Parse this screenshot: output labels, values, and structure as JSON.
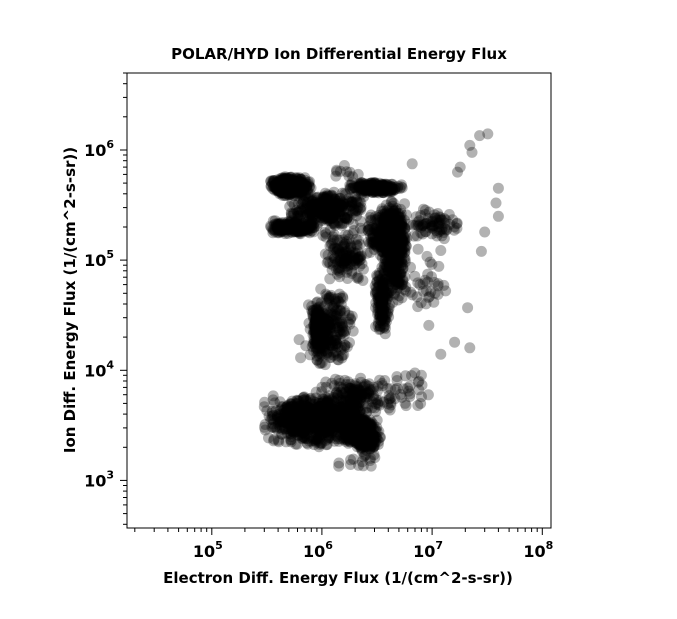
{
  "chart_data": {
    "type": "scatter",
    "title": "POLAR/HYD  Ion Differential Energy Flux",
    "xlabel": "Electron Diff. Energy Flux (1/(cm^2-s-sr))",
    "ylabel": "Ion Diff. Energy Flux (1/(cm^2-s-sr))",
    "xscale": "log",
    "yscale": "log",
    "xlim": [
      17000,
      120000000
    ],
    "ylim": [
      370,
      5000000
    ],
    "xticks": [
      {
        "value": 100000,
        "base": "10",
        "exp": "5"
      },
      {
        "value": 1000000,
        "base": "10",
        "exp": "6"
      },
      {
        "value": 10000000,
        "base": "10",
        "exp": "7"
      },
      {
        "value": 100000000,
        "base": "10",
        "exp": "8"
      }
    ],
    "yticks": [
      {
        "value": 1000,
        "base": "10",
        "exp": "3"
      },
      {
        "value": 10000,
        "base": "10",
        "exp": "4"
      },
      {
        "value": 100000,
        "base": "10",
        "exp": "5"
      },
      {
        "value": 1000000,
        "base": "10",
        "exp": "6"
      }
    ],
    "grid": false,
    "marker": {
      "color": "#000000",
      "opacity": 0.3
    },
    "clusters": [
      {
        "x": [
          280000,
          2800000
        ],
        "y": [
          2000,
          6000
        ],
        "count": 700
      },
      {
        "x": [
          380000,
          2500000
        ],
        "y": [
          2800,
          5000
        ],
        "count": 400
      },
      {
        "x": [
          1500000,
          3600000
        ],
        "y": [
          1800,
          3800
        ],
        "count": 300
      },
      {
        "x": [
          800000,
          5000000
        ],
        "y": [
          4000,
          9000
        ],
        "count": 160
      },
      {
        "x": [
          700000,
          2000000
        ],
        "y": [
          10000,
          60000
        ],
        "count": 250
      },
      {
        "x": [
          800000,
          1000000
        ],
        "y": [
          15000,
          40000
        ],
        "count": 120
      },
      {
        "x": [
          1000000,
          2600000
        ],
        "y": [
          60000,
          200000
        ],
        "count": 140
      },
      {
        "x": [
          3000000,
          4200000
        ],
        "y": [
          20000,
          90000
        ],
        "count": 140
      },
      {
        "x": [
          3500000,
          6000000
        ],
        "y": [
          40000,
          400000
        ],
        "count": 350
      },
      {
        "x": [
          330000,
          800000
        ],
        "y": [
          380000,
          580000
        ],
        "count": 450
      },
      {
        "x": [
          500000,
          2500000
        ],
        "y": [
          200000,
          420000
        ],
        "count": 350
      },
      {
        "x": [
          330000,
          900000
        ],
        "y": [
          170000,
          230000
        ],
        "count": 200
      },
      {
        "x": [
          1700000,
          5500000
        ],
        "y": [
          400000,
          520000
        ],
        "count": 220
      },
      {
        "x": [
          2500000,
          6000000
        ],
        "y": [
          100000,
          300000
        ],
        "count": 250
      },
      {
        "x": [
          5000000,
          20000000
        ],
        "y": [
          150000,
          300000
        ],
        "count": 80
      },
      {
        "x": [
          1200000,
          2400000
        ],
        "y": [
          550000,
          750000
        ],
        "count": 10
      },
      {
        "x": [
          6000000,
          15000000
        ],
        "y": [
          20000,
          150000
        ],
        "count": 35
      },
      {
        "x": [
          3500000,
          10000000
        ],
        "y": [
          3500,
          12000
        ],
        "count": 25
      },
      {
        "x": [
          1200000,
          5000000
        ],
        "y": [
          1200,
          2000
        ],
        "count": 15
      }
    ],
    "outliers": [
      [
        32000000,
        1400000
      ],
      [
        27000000,
        1350000
      ],
      [
        22000000,
        1100000
      ],
      [
        23000000,
        950000
      ],
      [
        18000000,
        700000
      ],
      [
        17000000,
        630000
      ],
      [
        40000000,
        450000
      ],
      [
        38000000,
        330000
      ],
      [
        40000000,
        250000
      ],
      [
        30000000,
        180000
      ],
      [
        28000000,
        120000
      ],
      [
        21000000,
        37000
      ],
      [
        22000000,
        16000
      ],
      [
        16000000,
        18000
      ],
      [
        12000000,
        14000
      ],
      [
        6600000,
        750000
      ],
      [
        1600000,
        16000
      ],
      [
        1100000,
        14000
      ],
      [
        2500000,
        1700
      ],
      [
        640000,
        13000
      ],
      [
        620000,
        19000
      ],
      [
        8000000,
        9000
      ]
    ]
  }
}
